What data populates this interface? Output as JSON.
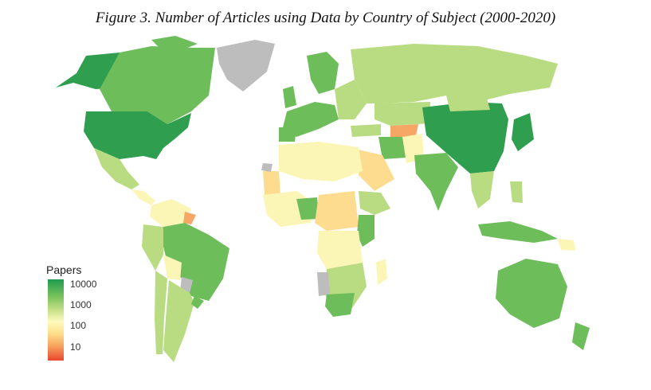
{
  "title": "Figure 3. Number of Articles using Data by Country of Subject (2000-2020)",
  "legend": {
    "title": "Papers",
    "ticks": [
      "10000",
      "1000",
      "100",
      "10"
    ]
  },
  "colors": {
    "very_high": "#2f9e4f",
    "high": "#6dbd5b",
    "mid_high": "#b9dc83",
    "mid": "#fbf6b5",
    "mid_low": "#fddc8f",
    "low": "#f6a766",
    "very_low": "#e34a33",
    "no_data": "#bdbdbd"
  }
}
